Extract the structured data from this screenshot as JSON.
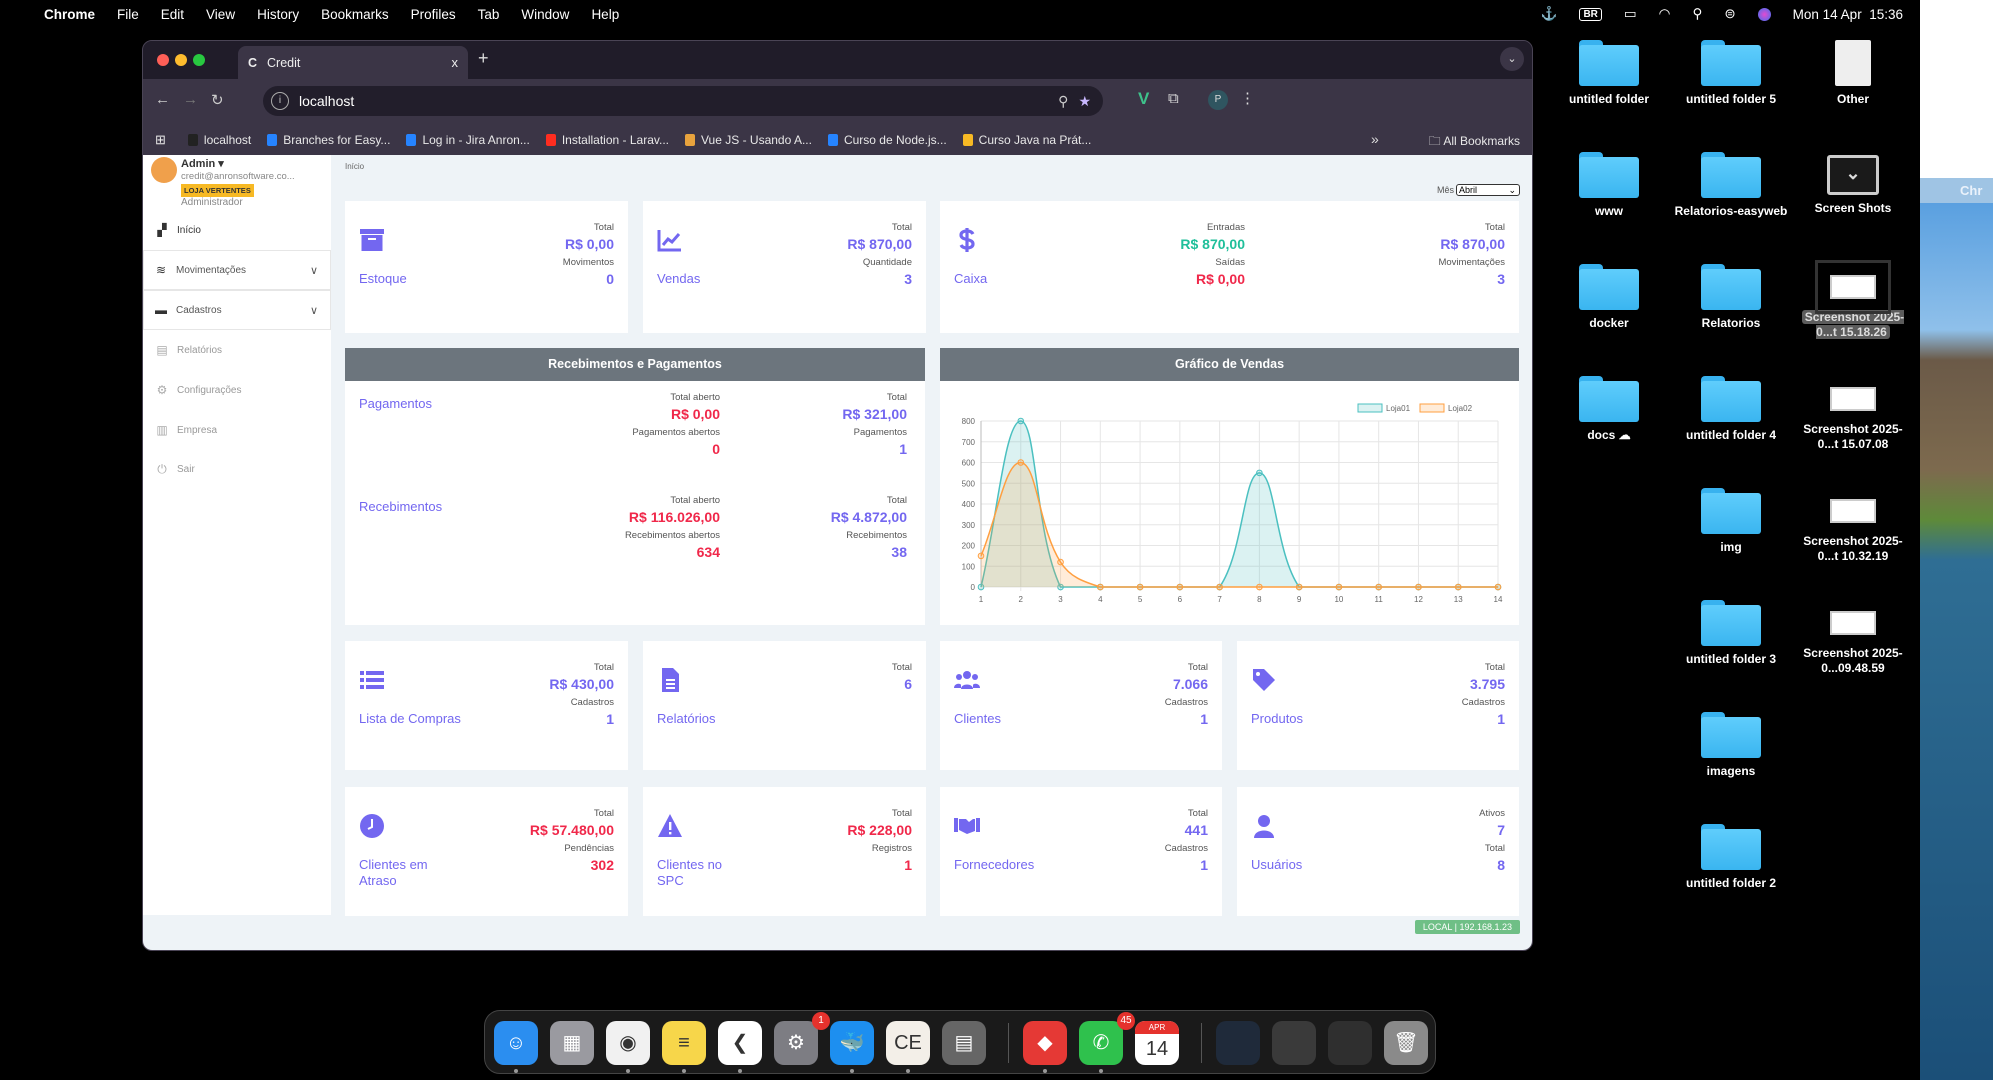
{
  "menubar": {
    "app": "Chrome",
    "items": [
      "File",
      "Edit",
      "View",
      "History",
      "Bookmarks",
      "Profiles",
      "Tab",
      "Window",
      "Help"
    ],
    "input_source": "BR",
    "date": "Mon 14 Apr",
    "time": "15:36"
  },
  "second_display": {
    "app_partial": "Chr"
  },
  "browser": {
    "tab_title": "Credit",
    "tab_close": "x",
    "new_tab": "+",
    "url": "localhost",
    "profile_initial": "P",
    "bookmarks": [
      "localhost",
      "Branches for Easy...",
      "Log in - Jira Anron...",
      "Installation - Larav...",
      "Vue JS - Usando A...",
      "Curso de Node.js...",
      "Curso Java na Prát..."
    ],
    "bookmark_colors": [
      "#222222",
      "#2684ff",
      "#2684ff",
      "#ff2d20",
      "#e8a33d",
      "#2684ff",
      "#f7b924"
    ],
    "overflow": "»",
    "all_bookmarks": "All Bookmarks"
  },
  "sidebar": {
    "user_name": "Admin ▾",
    "email": "credit@anronsoftware.co...",
    "store_badge": "LOJA VERTENTES",
    "role": "Administrador",
    "items": [
      {
        "label": "Início",
        "icon": "dashboard-icon",
        "style": "active"
      },
      {
        "label": "Movimentações",
        "icon": "database-icon",
        "style": "boxed",
        "chevron": "∨"
      },
      {
        "label": "Cadastros",
        "icon": "archive-icon",
        "style": "boxed",
        "chevron": "∨"
      },
      {
        "label": "Relatórios",
        "icon": "clipboard-icon",
        "style": "plain"
      },
      {
        "label": "Configurações",
        "icon": "gear-icon",
        "style": "plain"
      },
      {
        "label": "Empresa",
        "icon": "building-icon",
        "style": "plain"
      },
      {
        "label": "Sair",
        "icon": "power-icon",
        "style": "plain"
      }
    ]
  },
  "breadcrumb": "Início",
  "filter": {
    "label": "Mês",
    "value": "Abril"
  },
  "colors": {
    "accent": "#7367f0",
    "danger": "#f0284a",
    "success": "#1fbf9a",
    "panel_header": "#6c757d",
    "badge": "#6fbf86"
  },
  "cards": [
    {
      "name": "estoque",
      "title": "Estoque",
      "icon": "archive-icon",
      "columns": [
        [
          {
            "label": "Total",
            "value": "R$ 0,00",
            "color": "accent"
          },
          {
            "label": "Movimentos",
            "value": "0",
            "color": "accent"
          }
        ]
      ]
    },
    {
      "name": "vendas",
      "title": "Vendas",
      "icon": "chart-line-icon",
      "columns": [
        [
          {
            "label": "Total",
            "value": "R$ 870,00",
            "color": "accent"
          },
          {
            "label": "Quantidade",
            "value": "3",
            "color": "accent"
          }
        ]
      ]
    },
    {
      "name": "caixa",
      "title": "Caixa",
      "icon": "dollar-icon",
      "columns": [
        [
          {
            "label": "Entradas",
            "value": "R$ 870,00",
            "color": "success"
          },
          {
            "label": "Saídas",
            "value": "R$ 0,00",
            "color": "danger"
          }
        ],
        [
          {
            "label": "Total",
            "value": "R$ 870,00",
            "color": "accent"
          },
          {
            "label": "Movimentações",
            "value": "3",
            "color": "accent"
          }
        ]
      ]
    },
    {
      "name": "lista-de-compras",
      "title": "Lista de Compras",
      "icon": "list-icon",
      "columns": [
        [
          {
            "label": "Total",
            "value": "R$ 430,00",
            "color": "accent"
          },
          {
            "label": "Cadastros",
            "value": "1",
            "color": "accent"
          }
        ]
      ]
    },
    {
      "name": "relatorios",
      "title": "Relatórios",
      "icon": "file-icon",
      "columns": [
        [
          {
            "label": "Total",
            "value": "6",
            "color": "accent"
          }
        ]
      ]
    },
    {
      "name": "clientes",
      "title": "Clientes",
      "icon": "users-icon",
      "columns": [
        [
          {
            "label": "Total",
            "value": "7.066",
            "color": "accent"
          },
          {
            "label": "Cadastros",
            "value": "1",
            "color": "accent"
          }
        ]
      ]
    },
    {
      "name": "produtos",
      "title": "Produtos",
      "icon": "tag-icon",
      "columns": [
        [
          {
            "label": "Total",
            "value": "3.795",
            "color": "accent"
          },
          {
            "label": "Cadastros",
            "value": "1",
            "color": "accent"
          }
        ]
      ]
    },
    {
      "name": "clientes-em-atraso",
      "title": "Clientes em Atraso",
      "icon": "clock-icon",
      "columns": [
        [
          {
            "label": "Total",
            "value": "R$ 57.480,00",
            "color": "danger"
          },
          {
            "label": "Pendências",
            "value": "302",
            "color": "danger"
          }
        ]
      ]
    },
    {
      "name": "clientes-no-spc",
      "title": "Clientes no SPC",
      "icon": "warning-icon",
      "columns": [
        [
          {
            "label": "Total",
            "value": "R$ 228,00",
            "color": "danger"
          },
          {
            "label": "Registros",
            "value": "1",
            "color": "danger"
          }
        ]
      ]
    },
    {
      "name": "fornecedores",
      "title": "Fornecedores",
      "icon": "handshake-icon",
      "columns": [
        [
          {
            "label": "Total",
            "value": "441",
            "color": "accent"
          },
          {
            "label": "Cadastros",
            "value": "1",
            "color": "accent"
          }
        ]
      ]
    },
    {
      "name": "usuarios",
      "title": "Usuários",
      "icon": "user-icon",
      "columns": [
        [
          {
            "label": "Ativos",
            "value": "7",
            "color": "accent"
          },
          {
            "label": "Total",
            "value": "8",
            "color": "accent"
          }
        ]
      ]
    }
  ],
  "payments_panel": {
    "title": "Recebimentos e Pagamentos",
    "sections": [
      {
        "title": "Pagamentos",
        "columns": [
          [
            {
              "label": "Total aberto",
              "value": "R$ 0,00",
              "color": "danger"
            },
            {
              "label": "Pagamentos abertos",
              "value": "0",
              "color": "danger"
            }
          ],
          [
            {
              "label": "Total",
              "value": "R$ 321,00",
              "color": "accent"
            },
            {
              "label": "Pagamentos",
              "value": "1",
              "color": "accent"
            }
          ]
        ]
      },
      {
        "title": "Recebimentos",
        "columns": [
          [
            {
              "label": "Total aberto",
              "value": "R$ 116.026,00",
              "color": "danger"
            },
            {
              "label": "Recebimentos abertos",
              "value": "634",
              "color": "danger"
            }
          ],
          [
            {
              "label": "Total",
              "value": "R$ 4.872,00",
              "color": "accent"
            },
            {
              "label": "Recebimentos",
              "value": "38",
              "color": "accent"
            }
          ]
        ]
      }
    ]
  },
  "chart_panel": {
    "title": "Gráfico de Vendas"
  },
  "chart_data": {
    "type": "line",
    "title": "",
    "xlabel": "",
    "ylabel": "",
    "x": [
      1,
      2,
      3,
      4,
      5,
      6,
      7,
      8,
      9,
      10,
      11,
      12,
      13,
      14
    ],
    "ylim": [
      0,
      800
    ],
    "yticks": [
      0,
      100,
      200,
      300,
      400,
      500,
      600,
      700,
      800
    ],
    "grid": true,
    "legend": "top",
    "smooth": true,
    "filled": true,
    "series": [
      {
        "name": "Loja01",
        "values": [
          0,
          800,
          0,
          0,
          0,
          0,
          0,
          550,
          0,
          0,
          0,
          0,
          0,
          0
        ],
        "color": "#4bc0c0"
      },
      {
        "name": "Loja02",
        "values": [
          150,
          600,
          120,
          0,
          0,
          0,
          0,
          0,
          0,
          0,
          0,
          0,
          0,
          0
        ],
        "color": "#ff9f40"
      }
    ]
  },
  "env_badge": "LOCAL | 192.168.1.23",
  "desktop": {
    "columns": [
      [
        {
          "label": "untitled folder",
          "type": "folder"
        },
        {
          "label": "www",
          "type": "folder"
        },
        {
          "label": "docker",
          "type": "folder"
        },
        {
          "label": "docs ☁",
          "type": "folder"
        }
      ],
      [
        {
          "label": "untitled folder 5",
          "type": "folder"
        },
        {
          "label": "Relatorios-easyweb",
          "type": "folder"
        },
        {
          "label": "Relatorios",
          "type": "folder"
        },
        {
          "label": "untitled folder 4",
          "type": "folder"
        },
        {
          "label": "img",
          "type": "folder"
        },
        {
          "label": "untitled folder 3",
          "type": "folder"
        },
        {
          "label": "imagens",
          "type": "folder"
        },
        {
          "label": "untitled folder 2",
          "type": "folder"
        }
      ],
      [
        {
          "label": "Other",
          "type": "document"
        },
        {
          "label": "Screen Shots",
          "type": "screenshots-folder"
        },
        {
          "label": "Screenshot 2025-0...t 15.18.26",
          "type": "screenshot",
          "selected": true
        },
        {
          "label": "Screenshot 2025-0...t 15.07.08",
          "type": "screenshot"
        },
        {
          "label": "Screenshot 2025-0...t 10.32.19",
          "type": "screenshot"
        },
        {
          "label": "Screenshot 2025-0...09.48.59",
          "type": "screenshot"
        }
      ]
    ]
  },
  "dock": [
    {
      "name": "finder",
      "glyph": "☺",
      "bg": "#2b8ef0",
      "running": true
    },
    {
      "name": "launchpad",
      "glyph": "▦",
      "bg": "#9a9aa0"
    },
    {
      "name": "chrome",
      "glyph": "◉",
      "bg": "#f1f1f1",
      "running": true
    },
    {
      "name": "notes",
      "glyph": "≡",
      "bg": "#f7d64a",
      "running": true
    },
    {
      "name": "vscode",
      "glyph": "❮",
      "bg": "#ffffff",
      "running": true
    },
    {
      "name": "system-settings",
      "glyph": "⚙",
      "bg": "#7d7d83",
      "badge": "1"
    },
    {
      "name": "docker",
      "glyph": "🐳",
      "bg": "#1d8ff0",
      "running": true
    },
    {
      "name": "dbeaver",
      "glyph": "CE",
      "bg": "#f3efe8",
      "running": true
    },
    {
      "name": "calculator",
      "glyph": "▤",
      "bg": "#666666"
    },
    {
      "name": "anydesk",
      "glyph": "◆",
      "bg": "#e53935",
      "running": true,
      "sep": true
    },
    {
      "name": "whatsapp",
      "glyph": "✆",
      "bg": "#2fc14d",
      "badge": "45",
      "running": true
    },
    {
      "name": "calendar",
      "glyph": "14",
      "bg": "#ffffff",
      "month": "APR"
    },
    {
      "name": "minimized-window-1",
      "glyph": "",
      "bg": "#1f2a3a",
      "sep": true
    },
    {
      "name": "minimized-window-2",
      "glyph": "",
      "bg": "#3a3a3a"
    },
    {
      "name": "minimized-window-3",
      "glyph": "",
      "bg": "#2f2f2f"
    },
    {
      "name": "trash",
      "glyph": "🗑",
      "bg": "#8a8a8a"
    }
  ]
}
